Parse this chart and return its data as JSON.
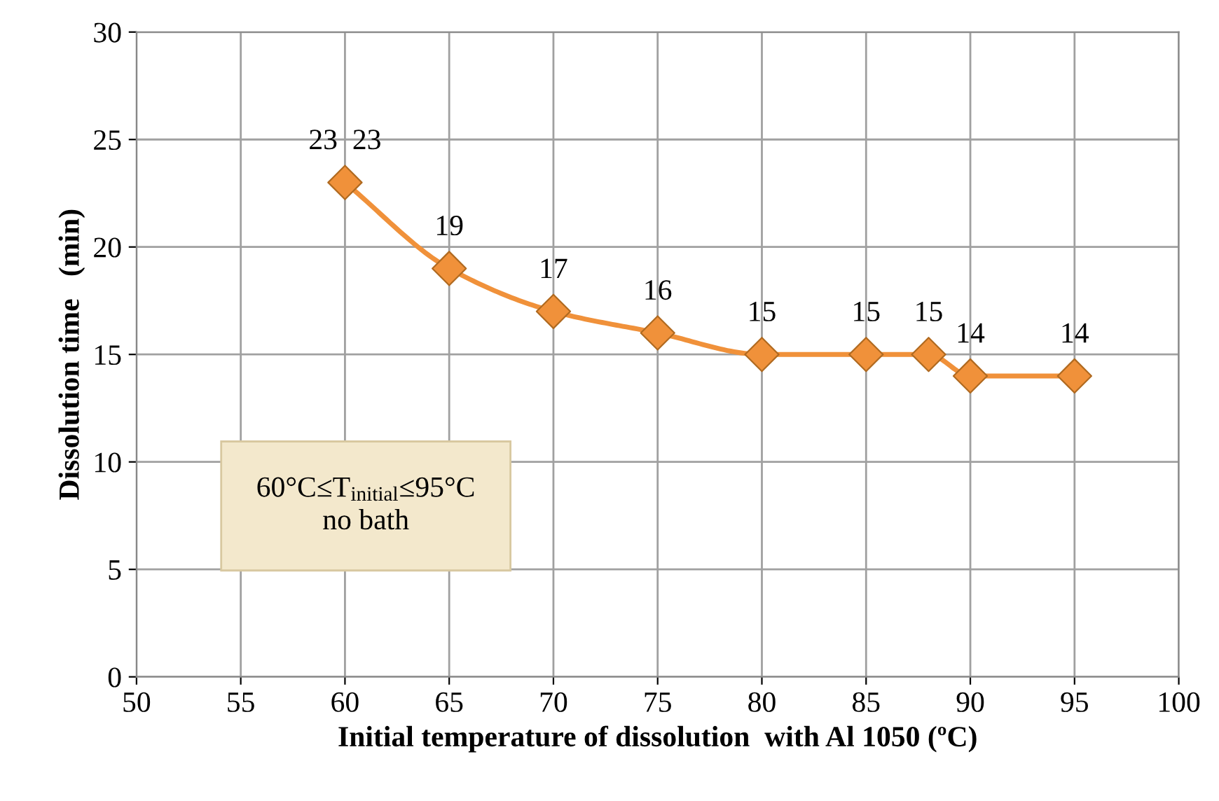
{
  "chart_data": {
    "type": "line",
    "xlabel": "Initial temperature of dissolution  with Al 1050 (ºC)",
    "ylabel": "Dissolution time   (min)",
    "x": [
      60,
      65,
      70,
      75,
      80,
      85,
      88,
      90,
      95
    ],
    "series": [
      {
        "color": "#f0913a",
        "values": [
          23,
          19,
          17,
          16,
          15,
          15,
          15,
          14,
          14
        ],
        "value_labels": [
          "23  23",
          "19",
          "17",
          "16",
          "15",
          "15",
          "15",
          "14",
          "14"
        ]
      }
    ],
    "xlim": [
      50,
      100
    ],
    "xticks": [
      50,
      55,
      60,
      65,
      70,
      75,
      80,
      85,
      90,
      95,
      100
    ],
    "ylim": [
      0,
      30
    ],
    "yticks": [
      0,
      5,
      10,
      15,
      20,
      25,
      30
    ],
    "grid": true,
    "marker": "diamond",
    "line_style": "solid",
    "annotations": [
      "60°C≤T$_{initial}$≤95°C\nno bath"
    ]
  }
}
